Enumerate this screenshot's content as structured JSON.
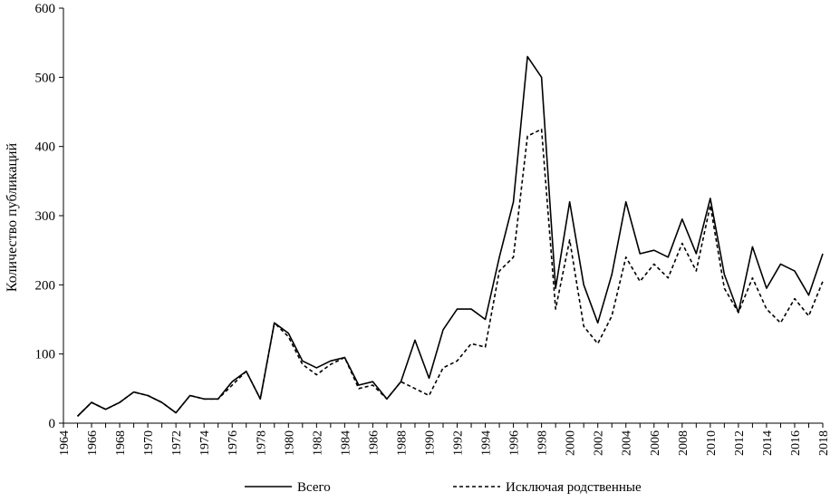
{
  "chart_data": {
    "type": "line",
    "title": "",
    "xlabel": "",
    "ylabel": "Количество публикаций",
    "xlim": [
      1964,
      2018
    ],
    "ylim": [
      0,
      600
    ],
    "y_ticks": [
      0,
      100,
      200,
      300,
      400,
      500,
      600
    ],
    "x_ticks": [
      1964,
      1966,
      1968,
      1970,
      1972,
      1974,
      1976,
      1978,
      1980,
      1982,
      1984,
      1986,
      1988,
      1990,
      1992,
      1994,
      1996,
      1998,
      2000,
      2002,
      2004,
      2006,
      2008,
      2010,
      2012,
      2014,
      2016,
      2018
    ],
    "grid": false,
    "legend_position": "bottom",
    "x": [
      1965,
      1966,
      1967,
      1968,
      1969,
      1970,
      1971,
      1972,
      1973,
      1974,
      1975,
      1976,
      1977,
      1978,
      1979,
      1980,
      1981,
      1982,
      1983,
      1984,
      1985,
      1986,
      1987,
      1988,
      1989,
      1990,
      1991,
      1992,
      1993,
      1994,
      1995,
      1996,
      1997,
      1998,
      1999,
      2000,
      2001,
      2002,
      2003,
      2004,
      2005,
      2006,
      2007,
      2008,
      2009,
      2010,
      2011,
      2012,
      2013,
      2014,
      2015,
      2016,
      2017,
      2018
    ],
    "series": [
      {
        "name": "Всего",
        "style": "solid",
        "color": "#000000",
        "values": [
          10,
          30,
          20,
          30,
          45,
          40,
          30,
          15,
          40,
          35,
          35,
          60,
          75,
          35,
          145,
          130,
          90,
          80,
          90,
          95,
          55,
          60,
          35,
          60,
          120,
          65,
          135,
          165,
          165,
          150,
          240,
          320,
          530,
          500,
          195,
          320,
          200,
          145,
          215,
          320,
          245,
          250,
          240,
          295,
          245,
          325,
          215,
          160,
          255,
          195,
          230,
          220,
          185,
          245
        ]
      },
      {
        "name": "Исключая родственные",
        "style": "dashed",
        "color": "#000000",
        "values": [
          10,
          30,
          20,
          30,
          45,
          40,
          30,
          15,
          40,
          35,
          35,
          55,
          75,
          35,
          145,
          125,
          85,
          70,
          85,
          95,
          50,
          55,
          35,
          60,
          50,
          40,
          80,
          90,
          115,
          110,
          220,
          240,
          415,
          425,
          165,
          265,
          140,
          115,
          155,
          240,
          205,
          230,
          210,
          260,
          220,
          315,
          195,
          160,
          210,
          165,
          145,
          180,
          155,
          205
        ]
      }
    ]
  }
}
